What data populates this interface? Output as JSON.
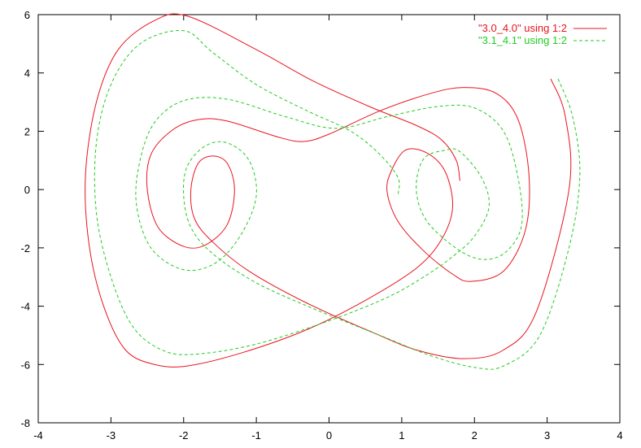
{
  "chart_data": {
    "type": "line",
    "title": "",
    "xlabel": "",
    "ylabel": "",
    "xlim": [
      -4,
      4
    ],
    "ylim": [
      -8,
      6
    ],
    "x_ticks": [
      -4,
      -3,
      -2,
      -1,
      0,
      1,
      2,
      3,
      4
    ],
    "y_ticks": [
      -8,
      -6,
      -4,
      -2,
      0,
      2,
      4,
      6
    ],
    "x_tick_labels": [
      "-4",
      "-3",
      "-2",
      "-1",
      "0",
      "1",
      "2",
      "3",
      "4"
    ],
    "y_tick_labels": [
      "-8",
      "-6",
      "-4",
      "-2",
      "0",
      "2",
      "4",
      "6"
    ],
    "grid": false,
    "legend_position": "top-right",
    "series": [
      {
        "name": "\"3.0_4.0\" using 1:2",
        "color": "#e8141e",
        "dash": "solid",
        "points": [
          [
            1.8,
            0.3
          ],
          [
            1.75,
            1.0
          ],
          [
            1.55,
            1.7
          ],
          [
            1.2,
            2.2
          ],
          [
            0.6,
            2.8
          ],
          [
            -0.2,
            3.7
          ],
          [
            -1.0,
            4.8
          ],
          [
            -1.95,
            5.95
          ],
          [
            -2.4,
            5.8
          ],
          [
            -2.9,
            4.8
          ],
          [
            -3.2,
            3.0
          ],
          [
            -3.35,
            0.5
          ],
          [
            -3.3,
            -1.9
          ],
          [
            -3.1,
            -4.0
          ],
          [
            -2.8,
            -5.5
          ],
          [
            -2.4,
            -6.0
          ],
          [
            -1.95,
            -6.05
          ],
          [
            -1.2,
            -5.6
          ],
          [
            -0.3,
            -4.8
          ],
          [
            0.5,
            -3.8
          ],
          [
            1.2,
            -2.7
          ],
          [
            1.55,
            -1.7
          ],
          [
            1.7,
            -0.6
          ],
          [
            1.6,
            0.6
          ],
          [
            1.35,
            1.25
          ],
          [
            1.05,
            1.35
          ],
          [
            0.85,
            0.6
          ],
          [
            0.8,
            -0.1
          ],
          [
            0.95,
            -1.1
          ],
          [
            1.3,
            -2.1
          ],
          [
            1.7,
            -2.9
          ],
          [
            1.95,
            -3.15
          ],
          [
            2.4,
            -2.8
          ],
          [
            2.7,
            -1.4
          ],
          [
            2.75,
            0.5
          ],
          [
            2.6,
            2.4
          ],
          [
            2.3,
            3.3
          ],
          [
            1.85,
            3.5
          ],
          [
            1.4,
            3.3
          ],
          [
            0.7,
            2.7
          ],
          [
            0.0,
            1.9
          ],
          [
            -0.35,
            1.65
          ],
          [
            -0.7,
            1.8
          ],
          [
            -1.4,
            2.35
          ],
          [
            -1.8,
            2.4
          ],
          [
            -2.15,
            2.05
          ],
          [
            -2.45,
            1.2
          ],
          [
            -2.5,
            0.0
          ],
          [
            -2.35,
            -1.3
          ],
          [
            -2.0,
            -1.95
          ],
          [
            -1.7,
            -1.9
          ],
          [
            -1.4,
            -1.2
          ],
          [
            -1.3,
            0.0
          ],
          [
            -1.4,
            0.9
          ],
          [
            -1.6,
            1.15
          ],
          [
            -1.8,
            0.9
          ],
          [
            -1.9,
            0.0
          ],
          [
            -1.85,
            -1.0
          ],
          [
            -1.6,
            -1.8
          ],
          [
            -1.1,
            -2.8
          ],
          [
            -0.3,
            -3.9
          ],
          [
            0.6,
            -4.9
          ],
          [
            1.2,
            -5.5
          ],
          [
            1.85,
            -5.8
          ],
          [
            2.4,
            -5.5
          ],
          [
            2.85,
            -4.2
          ],
          [
            3.3,
            0.0
          ],
          [
            3.25,
            2.5
          ],
          [
            3.05,
            3.8
          ]
        ]
      },
      {
        "name": "\"3.1_4.1\" using 1:2",
        "color": "#22cc22",
        "dash": "dashed",
        "points": [
          [
            0.95,
            -0.15
          ],
          [
            0.95,
            0.4
          ],
          [
            0.7,
            1.2
          ],
          [
            0.3,
            2.0
          ],
          [
            -0.3,
            2.7
          ],
          [
            -1.0,
            3.6
          ],
          [
            -1.6,
            4.7
          ],
          [
            -2.0,
            5.45
          ],
          [
            -2.6,
            5.0
          ],
          [
            -3.0,
            3.6
          ],
          [
            -3.2,
            1.6
          ],
          [
            -3.2,
            -0.8
          ],
          [
            -3.0,
            -3.0
          ],
          [
            -2.7,
            -4.7
          ],
          [
            -2.3,
            -5.5
          ],
          [
            -1.85,
            -5.65
          ],
          [
            -1.0,
            -5.3
          ],
          [
            0.0,
            -4.5
          ],
          [
            0.8,
            -3.7
          ],
          [
            1.3,
            -3.0
          ],
          [
            1.7,
            -2.3
          ],
          [
            2.0,
            -1.6
          ],
          [
            2.2,
            -0.6
          ],
          [
            2.1,
            0.4
          ],
          [
            1.8,
            1.3
          ],
          [
            1.6,
            1.35
          ],
          [
            1.3,
            1.05
          ],
          [
            1.2,
            0.0
          ],
          [
            1.35,
            -1.1
          ],
          [
            1.8,
            -2.1
          ],
          [
            2.15,
            -2.4
          ],
          [
            2.45,
            -2.1
          ],
          [
            2.65,
            -1.2
          ],
          [
            2.6,
            0.4
          ],
          [
            2.4,
            2.0
          ],
          [
            2.0,
            2.8
          ],
          [
            1.5,
            2.85
          ],
          [
            0.8,
            2.5
          ],
          [
            0.1,
            2.1
          ],
          [
            -0.6,
            2.5
          ],
          [
            -1.4,
            3.1
          ],
          [
            -2.0,
            3.05
          ],
          [
            -2.4,
            2.3
          ],
          [
            -2.6,
            1.0
          ],
          [
            -2.65,
            -0.5
          ],
          [
            -2.45,
            -2.0
          ],
          [
            -2.0,
            -2.75
          ],
          [
            -1.55,
            -2.5
          ],
          [
            -1.2,
            -1.5
          ],
          [
            -1.0,
            -0.2
          ],
          [
            -1.1,
            1.0
          ],
          [
            -1.4,
            1.6
          ],
          [
            -1.7,
            1.5
          ],
          [
            -1.95,
            0.8
          ],
          [
            -2.0,
            -0.2
          ],
          [
            -1.9,
            -1.3
          ],
          [
            -1.6,
            -2.2
          ],
          [
            -1.0,
            -3.2
          ],
          [
            -0.2,
            -4.1
          ],
          [
            0.7,
            -5.0
          ],
          [
            1.4,
            -5.7
          ],
          [
            2.0,
            -6.1
          ],
          [
            2.4,
            -6.05
          ],
          [
            2.9,
            -5.0
          ],
          [
            3.3,
            -2.0
          ],
          [
            3.45,
            0.5
          ],
          [
            3.35,
            2.5
          ],
          [
            3.15,
            3.8
          ]
        ]
      }
    ]
  }
}
